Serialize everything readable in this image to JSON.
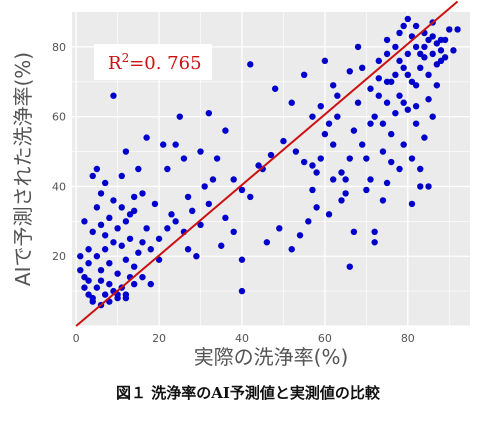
{
  "caption": "図１ 洗浄率のAI予測値と実測値の比較",
  "chart_data": {
    "type": "scatter",
    "title": "",
    "xlabel": "実際の洗浄率(%)",
    "ylabel": "AIで予測された洗浄率(%)",
    "xlim": [
      -1,
      95
    ],
    "ylim": [
      0,
      90
    ],
    "xticks": [
      0,
      20,
      40,
      60,
      80
    ],
    "yticks": [
      20,
      40,
      60,
      80
    ],
    "grid": true,
    "annotation": {
      "r_label": "R",
      "r_sup": "2",
      "r_value": "=0. 765"
    },
    "fit_line": {
      "x": [
        0,
        92
      ],
      "y": [
        0,
        93
      ]
    },
    "colors": {
      "points": "#0000cc",
      "fit_line": "#cc1111",
      "background": "#ebebeb",
      "grid": "#ffffff",
      "annotation_text": "#cc1111"
    },
    "points": [
      [
        2,
        14
      ],
      [
        3,
        9
      ],
      [
        4,
        7
      ],
      [
        5,
        11
      ],
      [
        6,
        13
      ],
      [
        7,
        9
      ],
      [
        8,
        12
      ],
      [
        9,
        10
      ],
      [
        10,
        8
      ],
      [
        11,
        11
      ],
      [
        12,
        9
      ],
      [
        6,
        16
      ],
      [
        8,
        18
      ],
      [
        10,
        15
      ],
      [
        12,
        19
      ],
      [
        14,
        17
      ],
      [
        3,
        18
      ],
      [
        5,
        20
      ],
      [
        7,
        22
      ],
      [
        9,
        24
      ],
      [
        11,
        23
      ],
      [
        13,
        25
      ],
      [
        15,
        21
      ],
      [
        4,
        27
      ],
      [
        6,
        29
      ],
      [
        8,
        31
      ],
      [
        10,
        28
      ],
      [
        12,
        30
      ],
      [
        14,
        33
      ],
      [
        2,
        30
      ],
      [
        5,
        34
      ],
      [
        9,
        36
      ],
      [
        11,
        34
      ],
      [
        13,
        32
      ],
      [
        7,
        26
      ],
      [
        3,
        22
      ],
      [
        16,
        38
      ],
      [
        15,
        45
      ],
      [
        4,
        43
      ],
      [
        5,
        45
      ],
      [
        9,
        66
      ],
      [
        12,
        50
      ],
      [
        17,
        54
      ],
      [
        6,
        38
      ],
      [
        1,
        20
      ],
      [
        2,
        11
      ],
      [
        4,
        8
      ],
      [
        6,
        6
      ],
      [
        8,
        7
      ],
      [
        10,
        9
      ],
      [
        12,
        8
      ],
      [
        14,
        12
      ],
      [
        16,
        14
      ],
      [
        1,
        16
      ],
      [
        3,
        13
      ],
      [
        13,
        14
      ],
      [
        18,
        22
      ],
      [
        20,
        25
      ],
      [
        22,
        28
      ],
      [
        24,
        30
      ],
      [
        26,
        27
      ],
      [
        28,
        33
      ],
      [
        30,
        29
      ],
      [
        32,
        35
      ],
      [
        22,
        45
      ],
      [
        24,
        52
      ],
      [
        26,
        48
      ],
      [
        30,
        50
      ],
      [
        34,
        48
      ],
      [
        36,
        56
      ],
      [
        25,
        60
      ],
      [
        32,
        61
      ],
      [
        38,
        42
      ],
      [
        40,
        39
      ],
      [
        21,
        52
      ],
      [
        23,
        32
      ],
      [
        27,
        22
      ],
      [
        35,
        23
      ],
      [
        29,
        20
      ],
      [
        20,
        19
      ],
      [
        40,
        10
      ],
      [
        40,
        19
      ],
      [
        42,
        37
      ],
      [
        45,
        45
      ],
      [
        47,
        49
      ],
      [
        48,
        68
      ],
      [
        50,
        53
      ],
      [
        52,
        64
      ],
      [
        55,
        72
      ],
      [
        46,
        24
      ],
      [
        42,
        75
      ],
      [
        52,
        22
      ],
      [
        54,
        26
      ],
      [
        56,
        30
      ],
      [
        58,
        34
      ],
      [
        57,
        46
      ],
      [
        59,
        48
      ],
      [
        60,
        55
      ],
      [
        61,
        58
      ],
      [
        62,
        52
      ],
      [
        63,
        60
      ],
      [
        64,
        44
      ],
      [
        65,
        38
      ],
      [
        66,
        73
      ],
      [
        67,
        56
      ],
      [
        68,
        64
      ],
      [
        70,
        48
      ],
      [
        62,
        42
      ],
      [
        61,
        32
      ],
      [
        64,
        36
      ],
      [
        67,
        27
      ],
      [
        70,
        39
      ],
      [
        72,
        24
      ],
      [
        72,
        27
      ],
      [
        74,
        36
      ],
      [
        75,
        41
      ],
      [
        76,
        47
      ],
      [
        73,
        66
      ],
      [
        71,
        68
      ],
      [
        69,
        74
      ],
      [
        73,
        76
      ],
      [
        75,
        78
      ],
      [
        75,
        82
      ],
      [
        77,
        80
      ],
      [
        78,
        76
      ],
      [
        79,
        74
      ],
      [
        80,
        72
      ],
      [
        81,
        70
      ],
      [
        82,
        69
      ],
      [
        83,
        78
      ],
      [
        84,
        80
      ],
      [
        85,
        82
      ],
      [
        86,
        83
      ],
      [
        87,
        81
      ],
      [
        88,
        79
      ],
      [
        89,
        77
      ],
      [
        90,
        85
      ],
      [
        78,
        84
      ],
      [
        80,
        88
      ],
      [
        82,
        86
      ],
      [
        84,
        84
      ],
      [
        86,
        87
      ],
      [
        88,
        82
      ],
      [
        76,
        70
      ],
      [
        78,
        66
      ],
      [
        80,
        62
      ],
      [
        82,
        58
      ],
      [
        84,
        54
      ],
      [
        86,
        60
      ],
      [
        79,
        52
      ],
      [
        81,
        48
      ],
      [
        83,
        45
      ],
      [
        85,
        40
      ],
      [
        81,
        35
      ],
      [
        83,
        40
      ],
      [
        77,
        61
      ],
      [
        74,
        58
      ],
      [
        75,
        64
      ],
      [
        85,
        72
      ],
      [
        88,
        76
      ],
      [
        91,
        79
      ],
      [
        92,
        85
      ],
      [
        87,
        75
      ],
      [
        79,
        86
      ],
      [
        77,
        72
      ],
      [
        82,
        80
      ],
      [
        75,
        70
      ],
      [
        73,
        71
      ],
      [
        80,
        78
      ],
      [
        83,
        74
      ],
      [
        86,
        78
      ],
      [
        89,
        82
      ],
      [
        81,
        83
      ],
      [
        84,
        77
      ],
      [
        87,
        69
      ],
      [
        79,
        64
      ],
      [
        76,
        55
      ],
      [
        66,
        17
      ],
      [
        65,
        42
      ],
      [
        57,
        39
      ],
      [
        55,
        47
      ],
      [
        53,
        50
      ],
      [
        58,
        44
      ],
      [
        66,
        48
      ],
      [
        69,
        52
      ],
      [
        71,
        58
      ],
      [
        63,
        66
      ],
      [
        59,
        63
      ],
      [
        68,
        80
      ],
      [
        72,
        60
      ],
      [
        85,
        65
      ],
      [
        82,
        63
      ],
      [
        78,
        45
      ],
      [
        74,
        50
      ],
      [
        71,
        42
      ],
      [
        60,
        76
      ],
      [
        57,
        60
      ],
      [
        62,
        69
      ],
      [
        33,
        42
      ],
      [
        36,
        31
      ],
      [
        31,
        40
      ],
      [
        27,
        37
      ],
      [
        44,
        46
      ],
      [
        49,
        28
      ],
      [
        38,
        27
      ],
      [
        19,
        35
      ],
      [
        17,
        28
      ],
      [
        16,
        24
      ],
      [
        18,
        12
      ],
      [
        7,
        41
      ],
      [
        14,
        37
      ],
      [
        11,
        43
      ]
    ]
  }
}
